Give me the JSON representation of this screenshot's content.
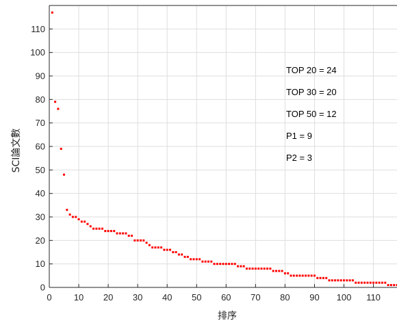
{
  "chart_data": {
    "type": "scatter",
    "title": "",
    "xlabel": "排序",
    "ylabel": "SCI論文數",
    "xlim": [
      0,
      118
    ],
    "ylim": [
      0,
      120
    ],
    "xticks": [
      0,
      10,
      20,
      30,
      40,
      50,
      60,
      70,
      80,
      90,
      100,
      110
    ],
    "yticks": [
      0,
      10,
      20,
      30,
      40,
      50,
      60,
      70,
      80,
      90,
      100,
      110
    ],
    "grid": true,
    "marker_color": "#ff0000",
    "annotations": [
      "TOP 20 = 24",
      "TOP 30 = 20",
      "TOP 50 = 12",
      "P1 = 9",
      "P2 = 3"
    ],
    "series": [
      {
        "x": [
          1,
          2,
          3,
          4,
          5,
          6,
          7,
          8,
          9,
          10,
          11,
          12,
          13,
          14,
          15,
          16,
          17,
          18,
          19,
          20,
          21,
          22,
          23,
          24,
          25,
          26,
          27,
          28,
          29,
          30,
          31,
          32,
          33,
          34,
          35,
          36,
          37,
          38,
          39,
          40,
          41,
          42,
          43,
          44,
          45,
          46,
          47,
          48,
          49,
          50,
          51,
          52,
          53,
          54,
          55,
          56,
          57,
          58,
          59,
          60,
          61,
          62,
          63,
          64,
          65,
          66,
          67,
          68,
          69,
          70,
          71,
          72,
          73,
          74,
          75,
          76,
          77,
          78,
          79,
          80,
          81,
          82,
          83,
          84,
          85,
          86,
          87,
          88,
          89,
          90,
          91,
          92,
          93,
          94,
          95,
          96,
          97,
          98,
          99,
          100,
          101,
          102,
          103,
          104,
          105,
          106,
          107,
          108,
          109,
          110,
          111,
          112,
          113,
          114,
          115,
          116,
          117,
          118
        ],
        "y": [
          117,
          79,
          76,
          59,
          48,
          33,
          31,
          30,
          30,
          29,
          28,
          28,
          27,
          26,
          25,
          25,
          25,
          25,
          24,
          24,
          24,
          24,
          23,
          23,
          23,
          23,
          22,
          22,
          20,
          20,
          20,
          20,
          19,
          18,
          17,
          17,
          17,
          17,
          16,
          16,
          16,
          15,
          15,
          14,
          14,
          13,
          13,
          12,
          12,
          12,
          12,
          11,
          11,
          11,
          11,
          10,
          10,
          10,
          10,
          10,
          10,
          10,
          10,
          9,
          9,
          9,
          8,
          8,
          8,
          8,
          8,
          8,
          8,
          8,
          8,
          7,
          7,
          7,
          7,
          6,
          6,
          5,
          5,
          5,
          5,
          5,
          5,
          5,
          5,
          5,
          4,
          4,
          4,
          4,
          3,
          3,
          3,
          3,
          3,
          3,
          3,
          3,
          3,
          2,
          2,
          2,
          2,
          2,
          2,
          2,
          2,
          2,
          2,
          2,
          1,
          1,
          1,
          1
        ]
      }
    ]
  }
}
